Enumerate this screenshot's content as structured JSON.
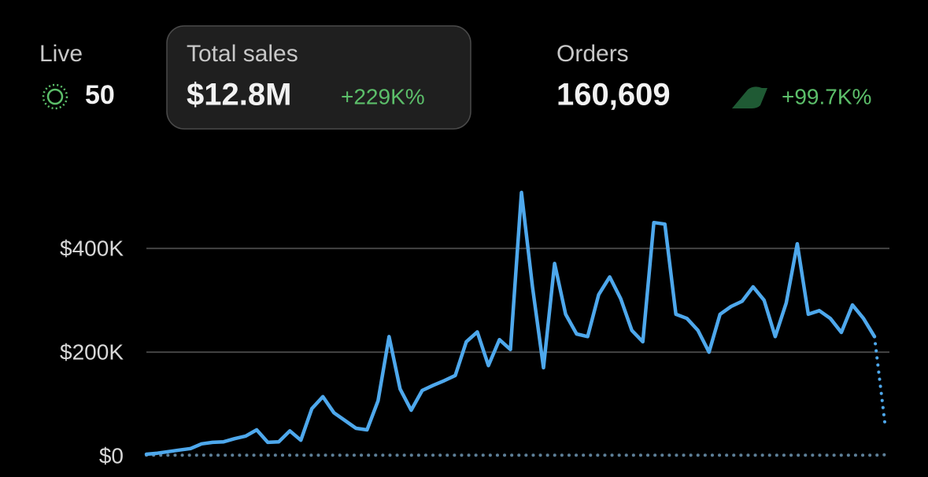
{
  "header": {
    "live": {
      "label": "Live",
      "value": "50"
    },
    "total_sales": {
      "label": "Total sales",
      "value": "$12.8M",
      "change": "+229K%"
    },
    "orders": {
      "label": "Orders",
      "value": "160,609",
      "change": "+99.7K%"
    }
  },
  "chart_data": {
    "type": "line",
    "ylim": [
      0,
      520000
    ],
    "yticks": [
      {
        "value": 0,
        "label": "$0"
      },
      {
        "value": 200000,
        "label": "$200K"
      },
      {
        "value": 400000,
        "label": "$400K"
      }
    ],
    "grid": true,
    "series": [
      {
        "color": "#4ea8ec",
        "style": "solid",
        "values": [
          3000,
          5000,
          8000,
          11000,
          14000,
          23000,
          26000,
          27000,
          33000,
          38000,
          50000,
          26000,
          27000,
          48000,
          30000,
          91000,
          114000,
          83000,
          68000,
          53000,
          50000,
          106000,
          230000,
          129000,
          88000,
          126000,
          136000,
          145000,
          155000,
          220000,
          239000,
          174000,
          224000,
          205000,
          508000,
          326000,
          170000,
          371000,
          273000,
          235000,
          230000,
          311000,
          345000,
          303000,
          242000,
          220000,
          450000,
          447000,
          273000,
          265000,
          242000,
          200000,
          273000,
          288000,
          298000,
          326000,
          300000,
          230000,
          295000,
          409000,
          273000,
          280000,
          265000,
          238000,
          291000,
          265000,
          230000,
          null
        ]
      },
      {
        "color": "#4ea8ec",
        "style": "dotted",
        "values": [
          null,
          null,
          null,
          null,
          null,
          null,
          null,
          null,
          null,
          null,
          null,
          null,
          null,
          null,
          null,
          null,
          null,
          null,
          null,
          null,
          null,
          null,
          null,
          null,
          null,
          null,
          null,
          null,
          null,
          null,
          null,
          null,
          null,
          null,
          null,
          null,
          null,
          null,
          null,
          null,
          null,
          null,
          null,
          null,
          null,
          null,
          null,
          null,
          null,
          null,
          null,
          null,
          null,
          null,
          null,
          null,
          null,
          null,
          null,
          null,
          null,
          null,
          null,
          null,
          null,
          null,
          230000,
          53000
        ]
      },
      {
        "color": "#5d7f98",
        "style": "dotted",
        "values": [
          1000,
          1000,
          1000,
          1000,
          1000,
          1000,
          1000,
          1000,
          1000,
          1000,
          1000,
          1000,
          1000,
          1000,
          1000,
          1000,
          1000,
          1000,
          1000,
          1000,
          1000,
          1000,
          1000,
          1000,
          1000,
          1000,
          1000,
          1000,
          1000,
          1000,
          1000,
          1000,
          1000,
          1000,
          1000,
          1000,
          1000,
          1000,
          1000,
          1000,
          1000,
          1000,
          1000,
          1000,
          1000,
          1000,
          1000,
          1000,
          1000,
          1000,
          1000,
          1000,
          1000,
          1000,
          1000,
          1000,
          1000,
          1000,
          1000,
          1000,
          1000,
          1000,
          1000,
          1000,
          1000,
          1000,
          1000,
          2000
        ]
      }
    ]
  }
}
